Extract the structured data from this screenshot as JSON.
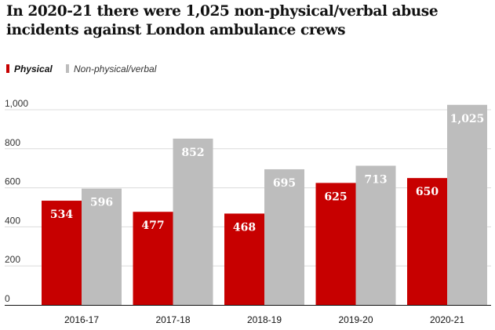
{
  "chart_data": {
    "type": "bar",
    "title": "In 2020-21 there were 1,025 non-physical/verbal abuse incidents against London ambulance crews",
    "categories": [
      "2016-17",
      "2017-18",
      "2018-19",
      "2019-20",
      "2020-21"
    ],
    "series": [
      {
        "name": "Physical",
        "color": "#c70000",
        "values": [
          534,
          477,
          468,
          625,
          650
        ],
        "labels": [
          "534",
          "477",
          "468",
          "625",
          "650"
        ]
      },
      {
        "name": "Non-physical/verbal",
        "color": "#bdbdbd",
        "values": [
          596,
          852,
          695,
          713,
          1025
        ],
        "labels": [
          "596",
          "852",
          "695",
          "713",
          "1,025"
        ]
      }
    ],
    "y_ticks": [
      {
        "value": 0,
        "label": "0"
      },
      {
        "value": 200,
        "label": "200"
      },
      {
        "value": 400,
        "label": "400"
      },
      {
        "value": 600,
        "label": "600"
      },
      {
        "value": 800,
        "label": "800"
      },
      {
        "value": 1000,
        "label": "1,000"
      }
    ],
    "ylim": [
      0,
      1000
    ],
    "grid": true,
    "legend_position": "top-left",
    "colors": {
      "gridline": "#dcdcdc",
      "axis": "#121212",
      "text": "#333333"
    }
  }
}
